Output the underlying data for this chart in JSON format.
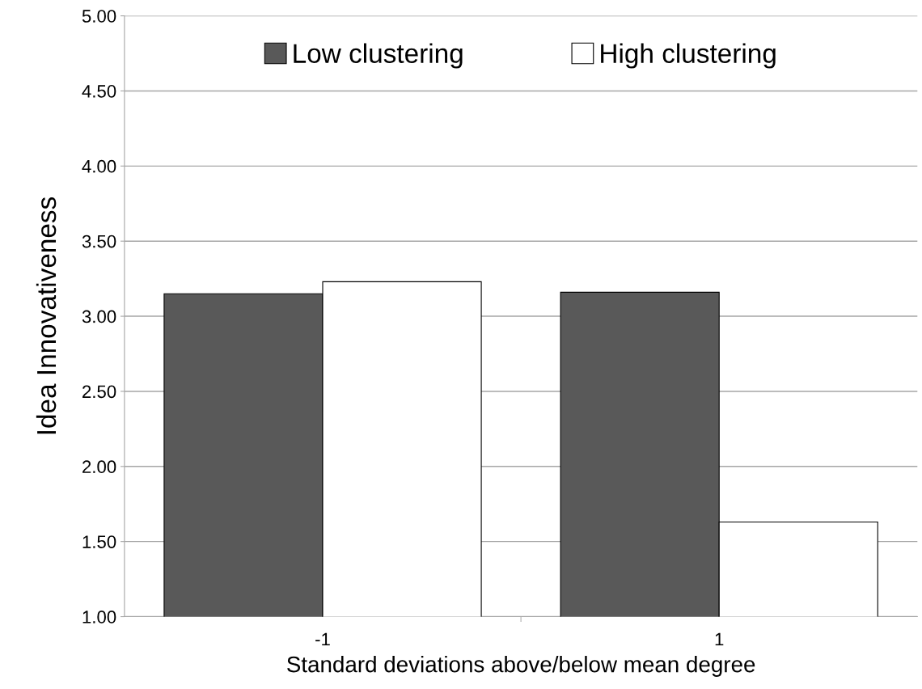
{
  "chart_data": {
    "type": "bar",
    "xlabel": "Standard deviations above/below mean degree",
    "ylabel": "Idea Innovativeness",
    "categories": [
      "-1",
      "1"
    ],
    "series": [
      {
        "name": "Low clustering",
        "color": "#595959",
        "values": [
          3.15,
          3.16
        ]
      },
      {
        "name": "High clustering",
        "color": "#ffffff",
        "values": [
          3.23,
          1.63
        ]
      }
    ],
    "ylim": [
      1,
      5
    ],
    "yticks": [
      {
        "value": 1,
        "label": "1.00"
      },
      {
        "value": 1.5,
        "label": "1.50"
      },
      {
        "value": 2,
        "label": "2.00"
      },
      {
        "value": 2.5,
        "label": "2.50"
      },
      {
        "value": 3,
        "label": "3.00"
      },
      {
        "value": 3.5,
        "label": "3.50"
      },
      {
        "value": 4,
        "label": "4.00"
      },
      {
        "value": 4.5,
        "label": "4.50"
      },
      {
        "value": 5,
        "label": "5.00"
      }
    ],
    "grid": "y",
    "legend": "top"
  }
}
